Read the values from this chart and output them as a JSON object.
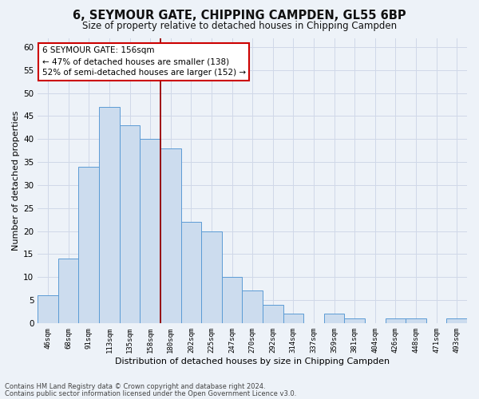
{
  "title": "6, SEYMOUR GATE, CHIPPING CAMPDEN, GL55 6BP",
  "subtitle": "Size of property relative to detached houses in Chipping Campden",
  "xlabel": "Distribution of detached houses by size in Chipping Campden",
  "ylabel": "Number of detached properties",
  "footer_line1": "Contains HM Land Registry data © Crown copyright and database right 2024.",
  "footer_line2": "Contains public sector information licensed under the Open Government Licence v3.0.",
  "bin_labels": [
    "46sqm",
    "68sqm",
    "91sqm",
    "113sqm",
    "135sqm",
    "158sqm",
    "180sqm",
    "202sqm",
    "225sqm",
    "247sqm",
    "270sqm",
    "292sqm",
    "314sqm",
    "337sqm",
    "359sqm",
    "381sqm",
    "404sqm",
    "426sqm",
    "448sqm",
    "471sqm",
    "493sqm"
  ],
  "bar_values": [
    6,
    14,
    34,
    47,
    43,
    40,
    38,
    22,
    20,
    10,
    7,
    4,
    2,
    0,
    2,
    1,
    0,
    1,
    1,
    0,
    1
  ],
  "bar_color": "#ccdcee",
  "bar_edge_color": "#5b9bd5",
  "vline_x": 5.5,
  "vline_color": "#990000",
  "ylim": [
    0,
    62
  ],
  "yticks": [
    0,
    5,
    10,
    15,
    20,
    25,
    30,
    35,
    40,
    45,
    50,
    55,
    60
  ],
  "annotation_title": "6 SEYMOUR GATE: 156sqm",
  "annotation_line2": "← 47% of detached houses are smaller (138)",
  "annotation_line3": "52% of semi-detached houses are larger (152) →",
  "annotation_box_facecolor": "#ffffff",
  "annotation_box_edgecolor": "#cc0000",
  "grid_color": "#d0d8e8",
  "bg_color": "#edf2f8"
}
